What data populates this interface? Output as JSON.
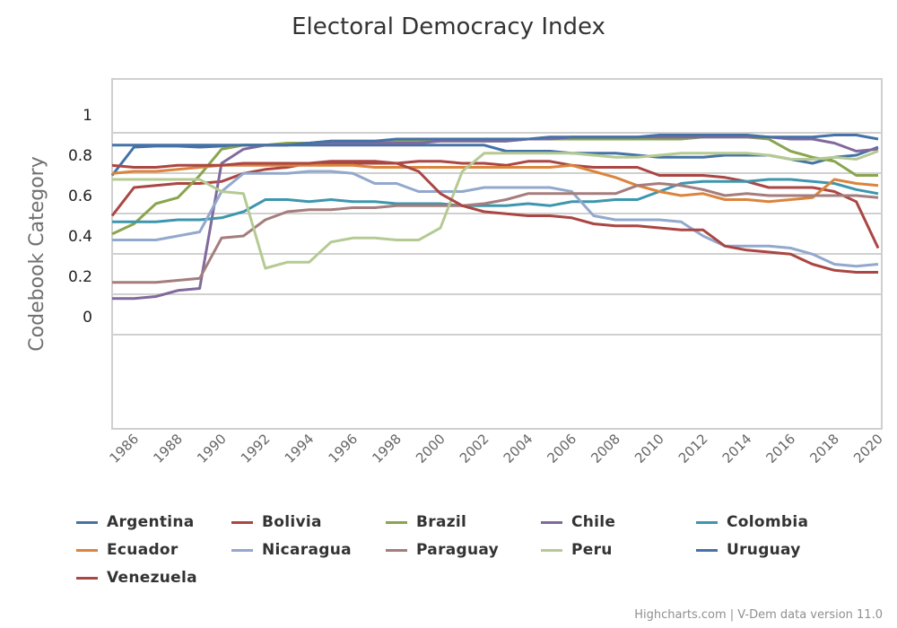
{
  "chart_data": {
    "type": "line",
    "title": "Electoral Democracy Index",
    "xlabel": "",
    "ylabel": "Codebook Category",
    "ylim": [
      0,
      1
    ],
    "yticks": [
      "0",
      "0.2",
      "0.4",
      "0.6",
      "0.8",
      "1"
    ],
    "ytick_values": [
      0,
      0.2,
      0.4,
      0.6,
      0.8,
      1
    ],
    "xlim": [
      1985,
      2020
    ],
    "xticks": [
      "1986",
      "1988",
      "1990",
      "1992",
      "1994",
      "1996",
      "1998",
      "2000",
      "2002",
      "2004",
      "2006",
      "2008",
      "2010",
      "2012",
      "2014",
      "2016",
      "2018",
      "2020"
    ],
    "x": [
      1985,
      1986,
      1987,
      1988,
      1989,
      1990,
      1991,
      1992,
      1993,
      1994,
      1995,
      1996,
      1997,
      1998,
      1999,
      2000,
      2001,
      2002,
      2003,
      2004,
      2005,
      2006,
      2007,
      2008,
      2009,
      2010,
      2011,
      2012,
      2013,
      2014,
      2015,
      2016,
      2017,
      2018,
      2019,
      2020
    ],
    "grid": true,
    "legend_position": "bottom",
    "series": [
      {
        "name": "Argentina",
        "color": "#4572A7",
        "values": [
          0.7,
          0.84,
          0.845,
          0.845,
          0.84,
          0.845,
          0.85,
          0.85,
          0.85,
          0.85,
          0.85,
          0.85,
          0.85,
          0.85,
          0.85,
          0.85,
          0.85,
          0.85,
          0.82,
          0.82,
          0.82,
          0.81,
          0.81,
          0.81,
          0.8,
          0.79,
          0.79,
          0.79,
          0.8,
          0.8,
          0.8,
          0.78,
          0.76,
          0.79,
          0.8,
          0.84
        ]
      },
      {
        "name": "Bolivia",
        "color": "#AA4643",
        "values": [
          0.5,
          0.64,
          0.65,
          0.66,
          0.66,
          0.67,
          0.71,
          0.73,
          0.74,
          0.76,
          0.76,
          0.76,
          0.76,
          0.76,
          0.77,
          0.77,
          0.76,
          0.76,
          0.75,
          0.77,
          0.77,
          0.75,
          0.74,
          0.74,
          0.74,
          0.7,
          0.7,
          0.7,
          0.69,
          0.67,
          0.64,
          0.64,
          0.64,
          0.62,
          0.57,
          0.34
        ]
      },
      {
        "name": "Brazil",
        "color": "#89A54E",
        "values": [
          0.41,
          0.46,
          0.56,
          0.59,
          0.7,
          0.83,
          0.85,
          0.85,
          0.86,
          0.86,
          0.87,
          0.87,
          0.87,
          0.87,
          0.87,
          0.87,
          0.87,
          0.87,
          0.87,
          0.88,
          0.88,
          0.88,
          0.88,
          0.88,
          0.88,
          0.88,
          0.88,
          0.89,
          0.89,
          0.89,
          0.88,
          0.82,
          0.79,
          0.77,
          0.7,
          0.7
        ]
      },
      {
        "name": "Chile",
        "color": "#80699B",
        "values": [
          0.09,
          0.09,
          0.1,
          0.13,
          0.14,
          0.76,
          0.83,
          0.85,
          0.85,
          0.86,
          0.86,
          0.86,
          0.86,
          0.86,
          0.86,
          0.87,
          0.87,
          0.87,
          0.87,
          0.88,
          0.88,
          0.89,
          0.89,
          0.89,
          0.89,
          0.89,
          0.89,
          0.89,
          0.89,
          0.89,
          0.89,
          0.88,
          0.88,
          0.86,
          0.82,
          0.83
        ]
      },
      {
        "name": "Colombia",
        "color": "#3D96AE",
        "values": [
          0.47,
          0.47,
          0.47,
          0.48,
          0.48,
          0.49,
          0.52,
          0.58,
          0.58,
          0.57,
          0.58,
          0.57,
          0.57,
          0.56,
          0.56,
          0.56,
          0.55,
          0.55,
          0.55,
          0.56,
          0.55,
          0.57,
          0.57,
          0.58,
          0.58,
          0.62,
          0.66,
          0.67,
          0.67,
          0.67,
          0.68,
          0.68,
          0.67,
          0.66,
          0.63,
          0.61
        ]
      },
      {
        "name": "Ecuador",
        "color": "#DB843D",
        "values": [
          0.71,
          0.72,
          0.72,
          0.73,
          0.74,
          0.75,
          0.75,
          0.75,
          0.75,
          0.75,
          0.75,
          0.75,
          0.74,
          0.74,
          0.74,
          0.74,
          0.74,
          0.74,
          0.74,
          0.74,
          0.74,
          0.75,
          0.72,
          0.69,
          0.65,
          0.62,
          0.6,
          0.61,
          0.58,
          0.58,
          0.57,
          0.58,
          0.59,
          0.68,
          0.66,
          0.65
        ]
      },
      {
        "name": "Nicaragua",
        "color": "#92A8CD",
        "values": [
          0.38,
          0.38,
          0.38,
          0.4,
          0.42,
          0.62,
          0.71,
          0.71,
          0.71,
          0.72,
          0.72,
          0.71,
          0.66,
          0.66,
          0.62,
          0.62,
          0.62,
          0.64,
          0.64,
          0.64,
          0.64,
          0.62,
          0.5,
          0.48,
          0.48,
          0.48,
          0.47,
          0.4,
          0.35,
          0.35,
          0.35,
          0.34,
          0.31,
          0.26,
          0.25,
          0.26
        ]
      },
      {
        "name": "Paraguay",
        "color": "#A47D7C",
        "values": [
          0.17,
          0.17,
          0.17,
          0.18,
          0.19,
          0.39,
          0.4,
          0.48,
          0.52,
          0.53,
          0.53,
          0.54,
          0.54,
          0.55,
          0.55,
          0.55,
          0.55,
          0.56,
          0.58,
          0.61,
          0.61,
          0.61,
          0.61,
          0.61,
          0.65,
          0.66,
          0.65,
          0.63,
          0.6,
          0.61,
          0.6,
          0.6,
          0.6,
          0.6,
          0.6,
          0.59
        ]
      },
      {
        "name": "Peru",
        "color": "#B5CA92",
        "values": [
          0.68,
          0.68,
          0.68,
          0.68,
          0.68,
          0.62,
          0.61,
          0.24,
          0.27,
          0.27,
          0.37,
          0.39,
          0.39,
          0.38,
          0.38,
          0.44,
          0.72,
          0.81,
          0.81,
          0.81,
          0.81,
          0.81,
          0.8,
          0.79,
          0.79,
          0.8,
          0.81,
          0.81,
          0.81,
          0.81,
          0.8,
          0.78,
          0.78,
          0.79,
          0.78,
          0.82
        ]
      },
      {
        "name": "Uruguay",
        "color": "#4572A7",
        "values": [
          0.85,
          0.85,
          0.85,
          0.85,
          0.85,
          0.85,
          0.85,
          0.85,
          0.85,
          0.86,
          0.87,
          0.87,
          0.87,
          0.88,
          0.88,
          0.88,
          0.88,
          0.88,
          0.88,
          0.88,
          0.89,
          0.89,
          0.89,
          0.89,
          0.89,
          0.9,
          0.9,
          0.9,
          0.9,
          0.9,
          0.89,
          0.89,
          0.89,
          0.9,
          0.9,
          0.88
        ]
      },
      {
        "name": "Venezuela",
        "color": "#AA4643",
        "values": [
          0.75,
          0.74,
          0.74,
          0.75,
          0.75,
          0.75,
          0.76,
          0.76,
          0.76,
          0.76,
          0.77,
          0.77,
          0.77,
          0.76,
          0.72,
          0.61,
          0.55,
          0.52,
          0.51,
          0.5,
          0.5,
          0.49,
          0.46,
          0.45,
          0.45,
          0.44,
          0.43,
          0.43,
          0.35,
          0.33,
          0.32,
          0.31,
          0.26,
          0.23,
          0.22,
          0.22
        ]
      }
    ]
  },
  "credit": "Highcharts.com | V-Dem data version 11.0"
}
